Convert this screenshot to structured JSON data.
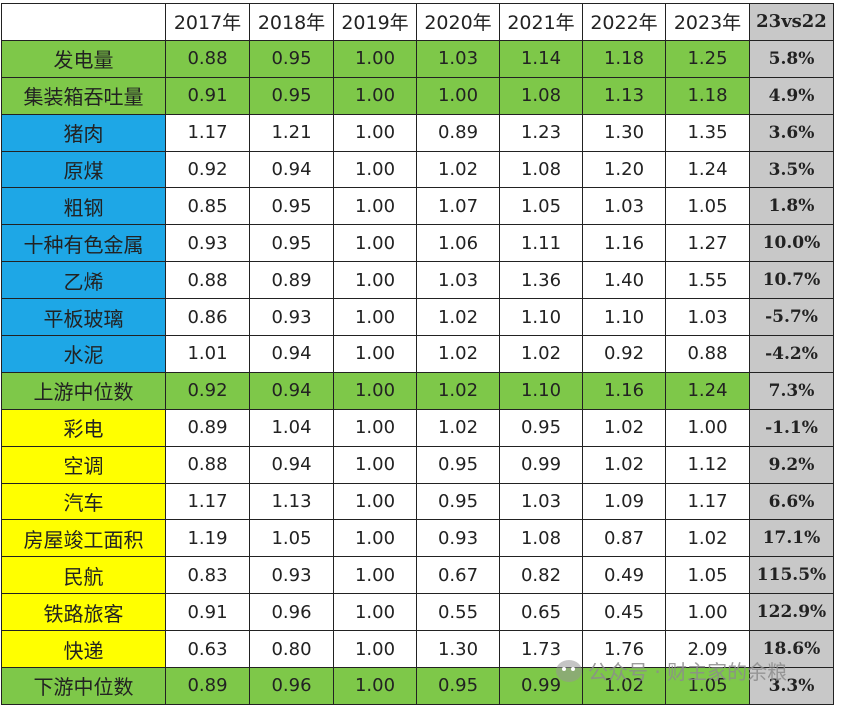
{
  "header": {
    "years": [
      "2017年",
      "2018年",
      "2019年",
      "2020年",
      "2021年",
      "2022年",
      "2023年"
    ],
    "last_col": "23vs22"
  },
  "colors": {
    "green": "#7ec849",
    "blue": "#1ea7e6",
    "yellow": "#ffff00",
    "gray": "#c8c8c8"
  },
  "rows": [
    {
      "label": "发电量",
      "group": "green",
      "values": [
        "0.88",
        "0.95",
        "1.00",
        "1.03",
        "1.14",
        "1.18",
        "1.25"
      ],
      "change": "5.8%"
    },
    {
      "label": "集装箱吞吐量",
      "group": "green",
      "values": [
        "0.91",
        "0.95",
        "1.00",
        "1.00",
        "1.08",
        "1.13",
        "1.18"
      ],
      "change": "4.9%"
    },
    {
      "label": "猪肉",
      "group": "blue",
      "values": [
        "1.17",
        "1.21",
        "1.00",
        "0.89",
        "1.23",
        "1.30",
        "1.35"
      ],
      "change": "3.6%"
    },
    {
      "label": "原煤",
      "group": "blue",
      "values": [
        "0.92",
        "0.94",
        "1.00",
        "1.02",
        "1.08",
        "1.20",
        "1.24"
      ],
      "change": "3.5%"
    },
    {
      "label": "粗钢",
      "group": "blue",
      "values": [
        "0.85",
        "0.95",
        "1.00",
        "1.07",
        "1.05",
        "1.03",
        "1.05"
      ],
      "change": "1.8%"
    },
    {
      "label": "十种有色金属",
      "group": "blue",
      "values": [
        "0.93",
        "0.95",
        "1.00",
        "1.06",
        "1.11",
        "1.16",
        "1.27"
      ],
      "change": "10.0%"
    },
    {
      "label": "乙烯",
      "group": "blue",
      "values": [
        "0.88",
        "0.89",
        "1.00",
        "1.03",
        "1.36",
        "1.40",
        "1.55"
      ],
      "change": "10.7%"
    },
    {
      "label": "平板玻璃",
      "group": "blue",
      "values": [
        "0.86",
        "0.93",
        "1.00",
        "1.02",
        "1.10",
        "1.10",
        "1.03"
      ],
      "change": "-5.7%"
    },
    {
      "label": "水泥",
      "group": "blue",
      "values": [
        "1.01",
        "0.94",
        "1.00",
        "1.02",
        "1.02",
        "0.92",
        "0.88"
      ],
      "change": "-4.2%"
    },
    {
      "label": "上游中位数",
      "group": "green",
      "values": [
        "0.92",
        "0.94",
        "1.00",
        "1.02",
        "1.10",
        "1.16",
        "1.24"
      ],
      "change": "7.3%"
    },
    {
      "label": "彩电",
      "group": "yellow",
      "values": [
        "0.89",
        "1.04",
        "1.00",
        "1.02",
        "0.95",
        "1.02",
        "1.00"
      ],
      "change": "-1.1%"
    },
    {
      "label": "空调",
      "group": "yellow",
      "values": [
        "0.88",
        "0.94",
        "1.00",
        "0.95",
        "0.99",
        "1.02",
        "1.12"
      ],
      "change": "9.2%"
    },
    {
      "label": "汽车",
      "group": "yellow",
      "values": [
        "1.17",
        "1.13",
        "1.00",
        "0.95",
        "1.03",
        "1.09",
        "1.17"
      ],
      "change": "6.6%"
    },
    {
      "label": "房屋竣工面积",
      "group": "yellow",
      "values": [
        "1.19",
        "1.05",
        "1.00",
        "0.93",
        "1.08",
        "0.87",
        "1.02"
      ],
      "change": "17.1%"
    },
    {
      "label": "民航",
      "group": "yellow",
      "values": [
        "0.83",
        "0.93",
        "1.00",
        "0.67",
        "0.82",
        "0.49",
        "1.05"
      ],
      "change": "115.5%"
    },
    {
      "label": "铁路旅客",
      "group": "yellow",
      "values": [
        "0.91",
        "0.96",
        "1.00",
        "0.55",
        "0.65",
        "0.45",
        "1.00"
      ],
      "change": "122.9%"
    },
    {
      "label": "快递",
      "group": "yellow",
      "values": [
        "0.63",
        "0.80",
        "1.00",
        "1.30",
        "1.73",
        "1.76",
        "2.09"
      ],
      "change": "18.6%"
    },
    {
      "label": "下游中位数",
      "group": "green",
      "values": [
        "0.89",
        "0.96",
        "1.00",
        "0.95",
        "0.99",
        "1.02",
        "1.05"
      ],
      "change": "3.3%"
    }
  ],
  "watermark": "公众号 · 财主家的余粮"
}
